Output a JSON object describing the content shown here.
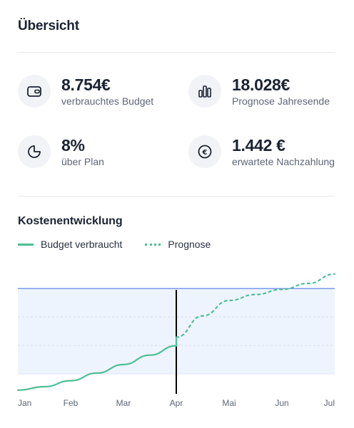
{
  "header": {
    "title": "Übersicht"
  },
  "kpis": [
    {
      "value": "8.754€",
      "label": "verbrauchtes Budget",
      "icon": "wallet-icon"
    },
    {
      "value": "18.028€",
      "label": "Prognose Jahresende",
      "icon": "bar-chart-icon"
    },
    {
      "value": "8%",
      "label": "über Plan",
      "icon": "pie-chart-icon"
    },
    {
      "value": "1.442 €",
      "label": "erwartete Nachzahlung",
      "icon": "euro-icon"
    }
  ],
  "chart_section": {
    "title": "Kostenentwicklung",
    "legend": {
      "actual": "Budget verbraucht",
      "forecast": "Prognose"
    }
  },
  "colors": {
    "series": "#4cbf94",
    "budget_line": "#6f8fe6",
    "band": "#eef4fe",
    "today_marker": "#000000"
  },
  "chart_data": {
    "type": "line",
    "categories": [
      "Jan",
      "Feb",
      "Mar",
      "Apr",
      "Mai",
      "Jun",
      "Jul"
    ],
    "budget_limit": 100,
    "band": [
      0,
      100
    ],
    "ylim": [
      -25,
      121
    ],
    "current_category": "Apr",
    "series": [
      {
        "name": "Budget verbraucht",
        "style": "solid",
        "points": [
          [
            0,
            -19
          ],
          [
            0.5,
            -15
          ],
          [
            1,
            -8
          ],
          [
            1.5,
            1
          ],
          [
            2,
            11
          ],
          [
            2.5,
            22
          ],
          [
            3,
            33
          ],
          [
            3,
            43
          ]
        ]
      },
      {
        "name": "Prognose",
        "style": "dashed",
        "points": [
          [
            3,
            43
          ],
          [
            3.5,
            68
          ],
          [
            4,
            86
          ],
          [
            4.5,
            93
          ],
          [
            5,
            99
          ],
          [
            5.5,
            106
          ],
          [
            6,
            117
          ]
        ]
      }
    ]
  }
}
